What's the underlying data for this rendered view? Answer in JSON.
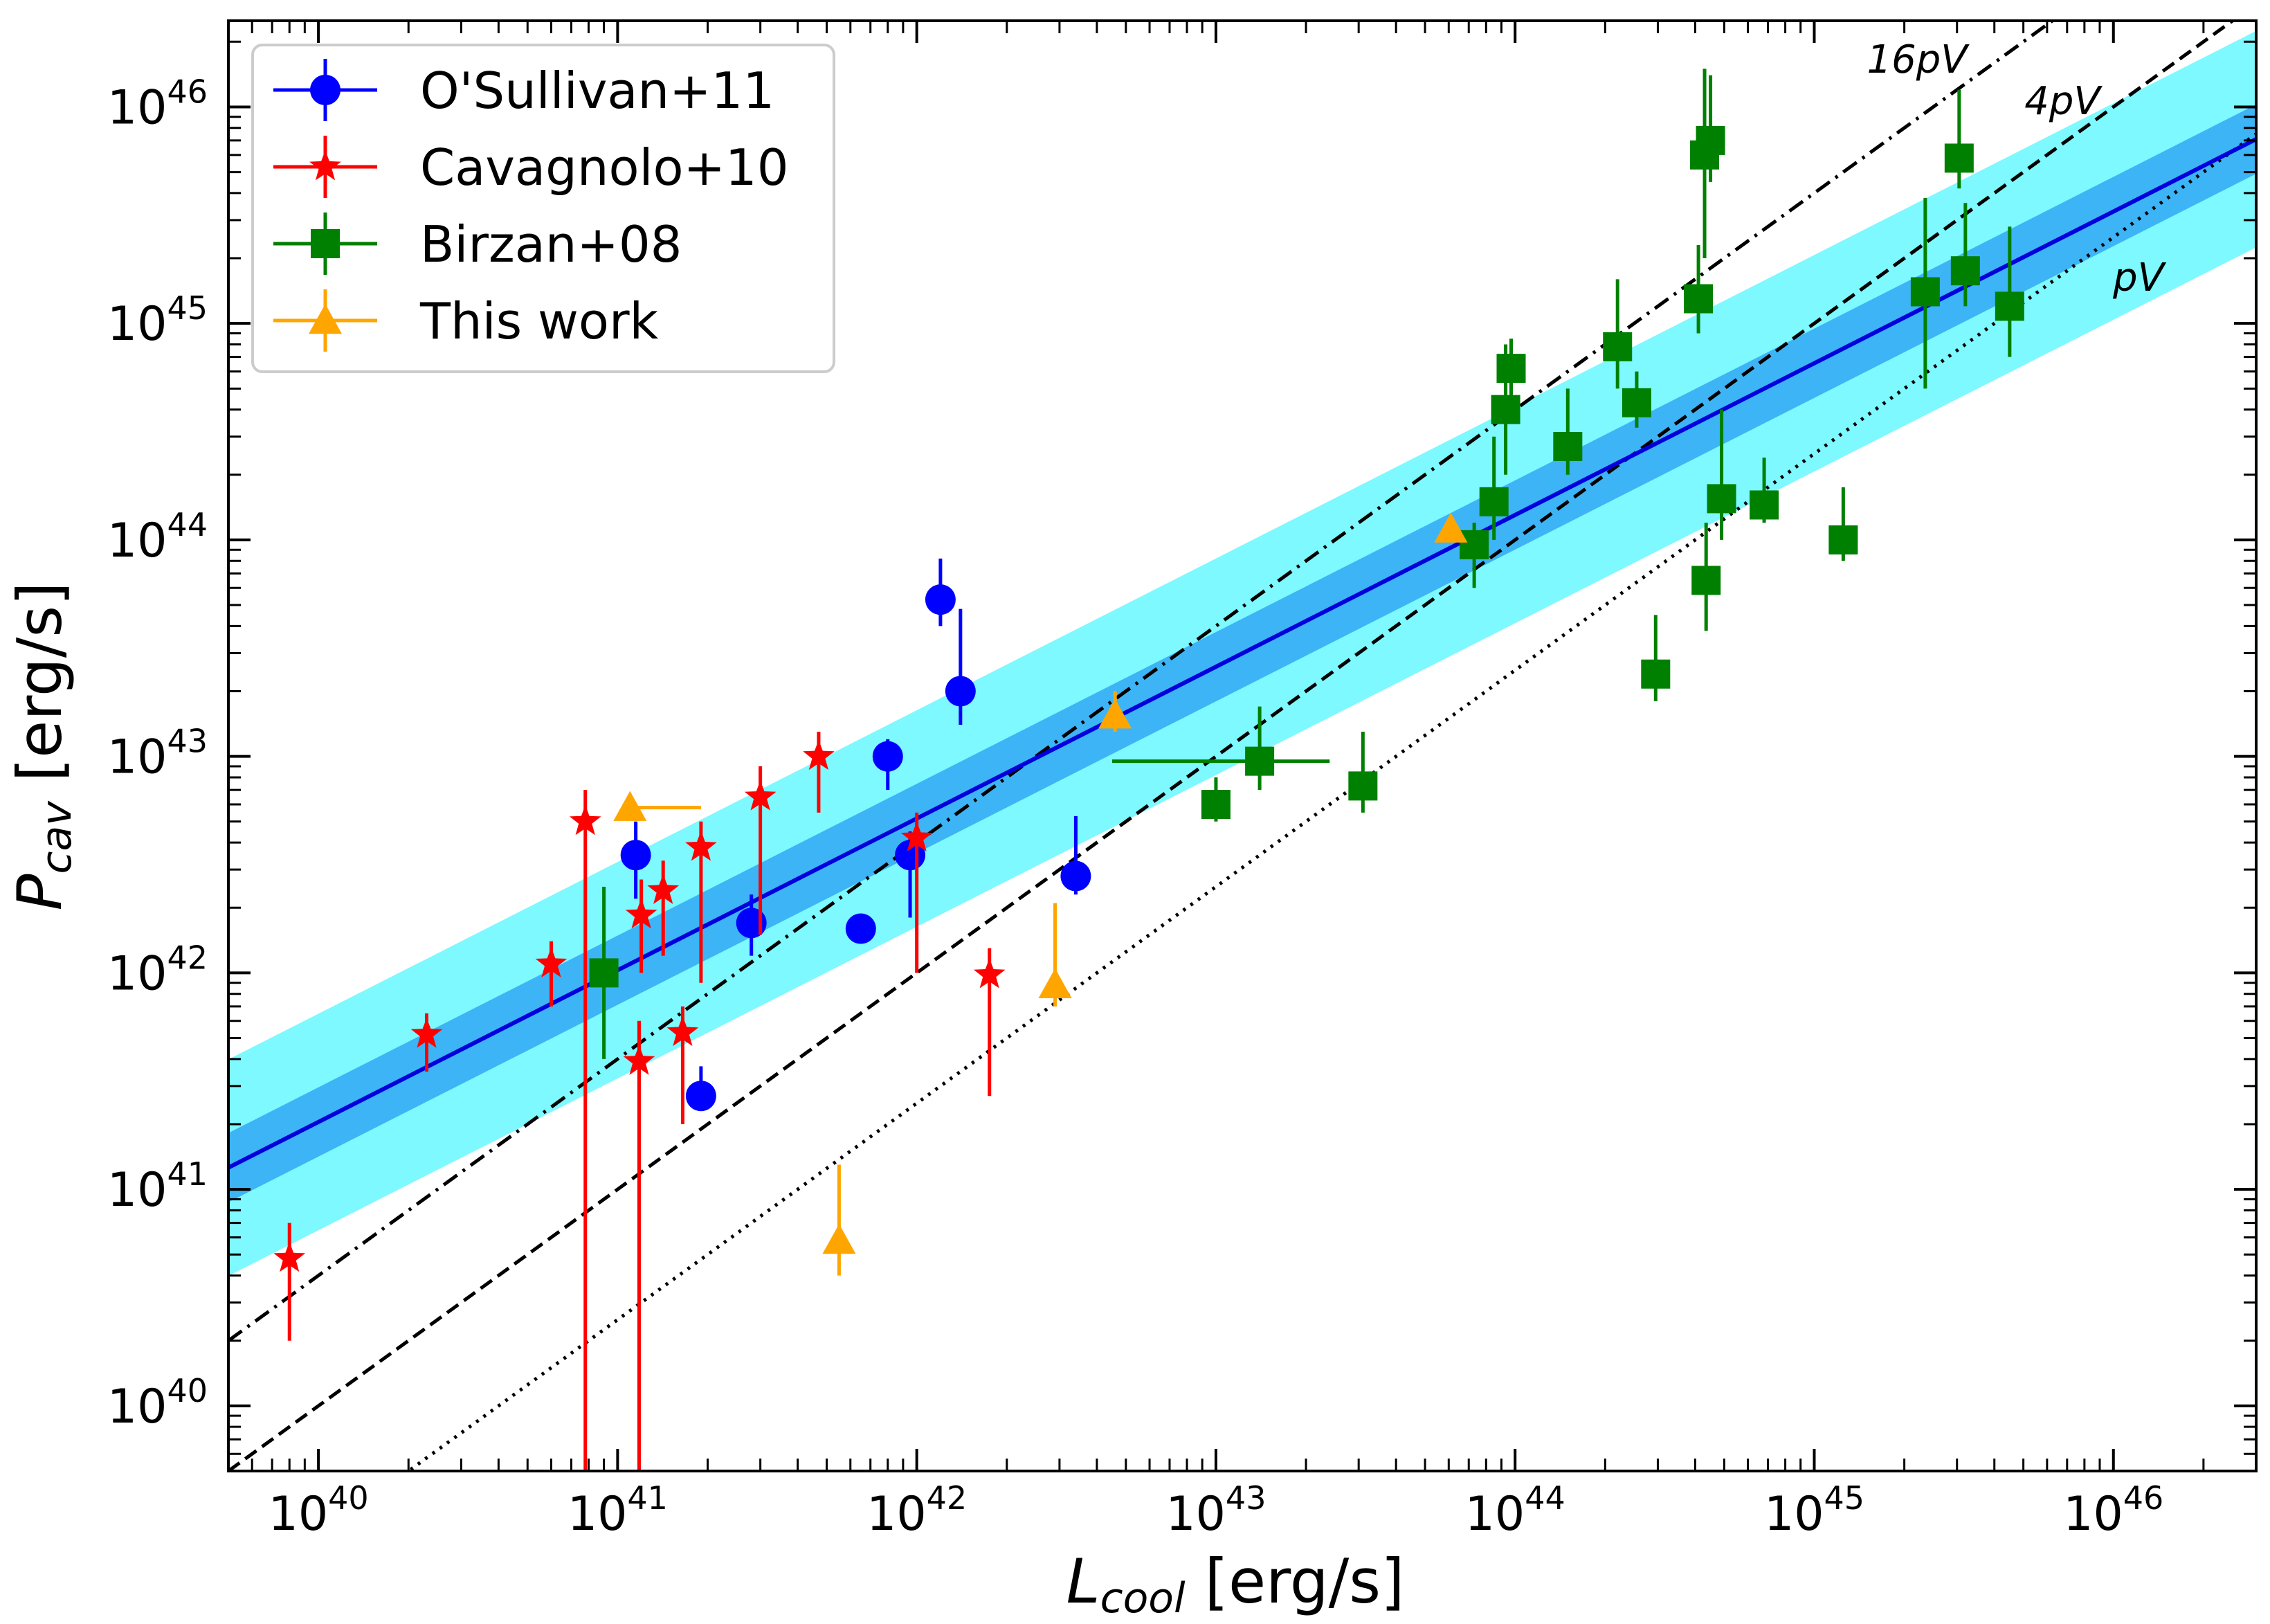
{
  "chart_data": {
    "type": "scatter",
    "xlabel_main": "L",
    "xlabel_sub": "cool",
    "xlabel_unit": " [erg/s]",
    "ylabel_main": "P",
    "ylabel_sub": "cav",
    "ylabel_unit": " [erg/s]",
    "xscale": "log",
    "yscale": "log",
    "xlim": [
      5e+39,
      3e+46
    ],
    "ylim": [
      5e+39,
      2.5e+46
    ],
    "x_ticks": [
      {
        "value": 1e+40,
        "base": "10",
        "exp": "40"
      },
      {
        "value": 1e+41,
        "base": "10",
        "exp": "41"
      },
      {
        "value": 1e+42,
        "base": "10",
        "exp": "42"
      },
      {
        "value": 1e+43,
        "base": "10",
        "exp": "43"
      },
      {
        "value": 1e+44,
        "base": "10",
        "exp": "44"
      },
      {
        "value": 1e+45,
        "base": "10",
        "exp": "45"
      },
      {
        "value": 1e+46,
        "base": "10",
        "exp": "46"
      }
    ],
    "y_ticks": [
      {
        "value": 1e+40,
        "base": "10",
        "exp": "40"
      },
      {
        "value": 1e+41,
        "base": "10",
        "exp": "41"
      },
      {
        "value": 1e+42,
        "base": "10",
        "exp": "42"
      },
      {
        "value": 1e+43,
        "base": "10",
        "exp": "43"
      },
      {
        "value": 1e+44,
        "base": "10",
        "exp": "44"
      },
      {
        "value": 1e+45,
        "base": "10",
        "exp": "45"
      },
      {
        "value": 1e+46,
        "base": "10",
        "exp": "46"
      }
    ],
    "fit": {
      "name": "best-fit relation",
      "color": "#0000dd",
      "points": [
        [
          5e+39,
          1.26e+41
        ],
        [
          3e+46,
          7.1e+45
        ]
      ],
      "inner_band": {
        "color": "#3db4f5",
        "log_halfwidth": 0.16
      },
      "outer_band": {
        "color": "#7df9ff",
        "log_halfwidth": 0.5
      }
    },
    "reference_lines": [
      {
        "label": "16pV",
        "style": "dashdot",
        "points": [
          [
            5e+39,
            2e+40
          ],
          [
            3e+46,
            1.2e+47
          ]
        ]
      },
      {
        "label": "4pV",
        "style": "dashed",
        "points": [
          [
            5e+39,
            5e+39
          ],
          [
            3e+46,
            3e+46
          ]
        ]
      },
      {
        "label": "pV",
        "style": "dotted",
        "points": [
          [
            5e+39,
            1.25e+39
          ],
          [
            3e+46,
            7.5e+45
          ]
        ]
      }
    ],
    "series": [
      {
        "name": "O'Sullivan+11",
        "marker": "circle",
        "color": "#0000ff",
        "points": [
          {
            "x": 1.15e+41,
            "y": 3.5e+42,
            "ylo": 2.2e+42,
            "yhi": 5e+42
          },
          {
            "x": 1.9e+41,
            "y": 2.7e+41,
            "ylo": 2.3e+41,
            "yhi": 3.7e+41
          },
          {
            "x": 2.8e+41,
            "y": 1.7e+42,
            "ylo": 1.2e+42,
            "yhi": 2.3e+42
          },
          {
            "x": 6.5e+41,
            "y": 1.6e+42
          },
          {
            "x": 8e+41,
            "y": 1e+43,
            "ylo": 7e+42,
            "yhi": 1.2e+43
          },
          {
            "x": 9.5e+41,
            "y": 3.5e+42,
            "ylo": 1.8e+42,
            "yhi": 4.5e+42
          },
          {
            "x": 1.2e+42,
            "y": 5.3e+43,
            "ylo": 4e+43,
            "yhi": 8.2e+43
          },
          {
            "x": 1.4e+42,
            "y": 2e+43,
            "ylo": 1.4e+43,
            "yhi": 4.8e+43
          },
          {
            "x": 3.4e+42,
            "y": 2.8e+42,
            "ylo": 2.3e+42,
            "yhi": 5.3e+42
          }
        ]
      },
      {
        "name": "Cavagnolo+10",
        "marker": "star",
        "color": "#ff0000",
        "points": [
          {
            "x": 8e+39,
            "y": 4.8e+40,
            "ylo": 2e+40,
            "yhi": 7e+40
          },
          {
            "x": 2.3e+40,
            "y": 5.2e+41,
            "ylo": 3.5e+41,
            "yhi": 6.5e+41
          },
          {
            "x": 6e+40,
            "y": 1.1e+42,
            "ylo": 7e+41,
            "yhi": 1.4e+42
          },
          {
            "x": 7.8e+40,
            "y": 5e+42,
            "ylo": 5e+39,
            "yhi": 7e+42
          },
          {
            "x": 1.18e+41,
            "y": 3.9e+41,
            "ylo": 5e+39,
            "yhi": 6e+41
          },
          {
            "x": 1.2e+41,
            "y": 1.85e+42,
            "ylo": 1e+42,
            "yhi": 2.7e+42
          },
          {
            "x": 1.42e+41,
            "y": 2.4e+42,
            "ylo": 1.2e+42,
            "yhi": 3.3e+42
          },
          {
            "x": 1.65e+41,
            "y": 5.3e+41,
            "ylo": 2e+41,
            "yhi": 7e+41
          },
          {
            "x": 1.9e+41,
            "y": 3.8e+42,
            "ylo": 9e+41,
            "yhi": 5e+42
          },
          {
            "x": 3e+41,
            "y": 6.5e+42,
            "ylo": 1.5e+42,
            "yhi": 9e+42
          },
          {
            "x": 4.7e+41,
            "y": 1e+43,
            "ylo": 5.5e+42,
            "yhi": 1.3e+43
          },
          {
            "x": 1e+42,
            "y": 4.2e+42,
            "ylo": 1e+42,
            "yhi": 5.5e+42
          },
          {
            "x": 1.75e+42,
            "y": 9.8e+41,
            "ylo": 2.7e+41,
            "yhi": 1.3e+42
          }
        ]
      },
      {
        "name": "Birzan+08",
        "marker": "square",
        "color": "#008000",
        "points": [
          {
            "x": 9e+40,
            "y": 1e+42,
            "ylo": 4e+41,
            "yhi": 2.5e+42
          },
          {
            "x": 1e+43,
            "y": 6e+42,
            "ylo": 5e+42,
            "yhi": 8e+42
          },
          {
            "x": 1.4e+43,
            "y": 9.5e+42,
            "ylo": 7e+42,
            "yhi": 1.7e+43,
            "xlo": 4.5e+42,
            "xhi": 2.4e+43
          },
          {
            "x": 3.1e+43,
            "y": 7.3e+42,
            "ylo": 5.5e+42,
            "yhi": 1.3e+43
          },
          {
            "x": 7.3e+43,
            "y": 9.5e+43,
            "ylo": 6e+43,
            "yhi": 1.2e+44
          },
          {
            "x": 8.5e+43,
            "y": 1.5e+44,
            "ylo": 1e+44,
            "yhi": 3e+44
          },
          {
            "x": 9.3e+43,
            "y": 4e+44,
            "ylo": 2e+44,
            "yhi": 8e+44
          },
          {
            "x": 9.7e+43,
            "y": 6.2e+44,
            "ylo": 4e+44,
            "yhi": 8.5e+44
          },
          {
            "x": 1.5e+44,
            "y": 2.7e+44,
            "ylo": 2e+44,
            "yhi": 5e+44
          },
          {
            "x": 2.2e+44,
            "y": 7.8e+44,
            "ylo": 5e+44,
            "yhi": 1.6e+45
          },
          {
            "x": 2.55e+44,
            "y": 4.3e+44,
            "ylo": 3.3e+44,
            "yhi": 6e+44
          },
          {
            "x": 2.95e+44,
            "y": 2.4e+43,
            "ylo": 1.8e+43,
            "yhi": 4.5e+43
          },
          {
            "x": 4.1e+44,
            "y": 1.3e+45,
            "ylo": 9e+44,
            "yhi": 2.3e+45
          },
          {
            "x": 4.3e+44,
            "y": 6e+45,
            "ylo": 2e+45,
            "yhi": 1.5e+46
          },
          {
            "x": 4.5e+44,
            "y": 7e+45,
            "ylo": 4.5e+45,
            "yhi": 1.4e+46
          },
          {
            "x": 4.35e+44,
            "y": 6.5e+43,
            "ylo": 3.8e+43,
            "yhi": 1.2e+44
          },
          {
            "x": 4.9e+44,
            "y": 1.55e+44,
            "ylo": 1e+44,
            "yhi": 4e+44
          },
          {
            "x": 6.8e+44,
            "y": 1.45e+44,
            "ylo": 1.2e+44,
            "yhi": 2.4e+44
          },
          {
            "x": 1.25e+45,
            "y": 1e+44,
            "ylo": 8e+43,
            "yhi": 1.75e+44
          },
          {
            "x": 2.35e+45,
            "y": 1.4e+45,
            "ylo": 5e+44,
            "yhi": 3.8e+45
          },
          {
            "x": 3.05e+45,
            "y": 5.8e+45,
            "ylo": 4.2e+45,
            "yhi": 1.2e+46
          },
          {
            "x": 3.2e+45,
            "y": 1.75e+45,
            "ylo": 1.2e+45,
            "yhi": 3.6e+45
          },
          {
            "x": 4.5e+45,
            "y": 1.2e+45,
            "ylo": 7e+44,
            "yhi": 2.8e+45
          }
        ]
      },
      {
        "name": "This work",
        "marker": "triangle",
        "color": "#ffa500",
        "points": [
          {
            "x": 1.1e+41,
            "y": 5.8e+42,
            "xlo": 1.1e+41,
            "xhi": 1.9e+41
          },
          {
            "x": 5.5e+41,
            "y": 5.8e+40,
            "ylo": 4e+40,
            "yhi": 1.3e+41
          },
          {
            "x": 2.9e+42,
            "y": 8.8e+41,
            "ylo": 7e+41,
            "yhi": 2.1e+42
          },
          {
            "x": 4.6e+42,
            "y": 1.55e+43,
            "ylo": 1.3e+43,
            "yhi": 2e+43
          },
          {
            "x": 6.1e+43,
            "y": 1.12e+44,
            "ylo": 1e+44,
            "yhi": 1.25e+44
          }
        ]
      }
    ],
    "legend_position": "top-left"
  }
}
